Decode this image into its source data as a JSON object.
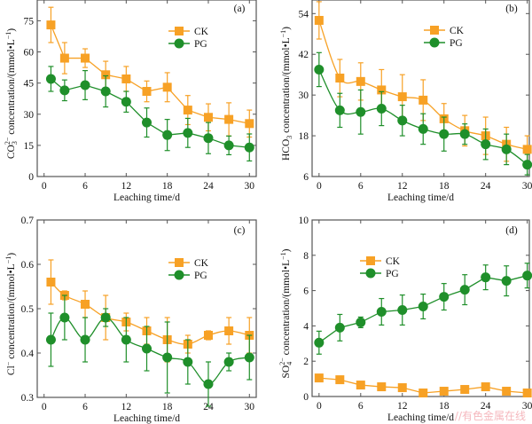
{
  "colors": {
    "CK": "#f7a125",
    "PG": "#1f8f2a",
    "axis": "#555555"
  },
  "watermark": "//有色金属在线",
  "chart_data": [
    {
      "id": "a",
      "type": "line",
      "panel_label": "(a)",
      "xlabel": "Leaching time/d",
      "ylabel_parts": [
        "CO",
        "3",
        "2−",
        " concentration/(mmol•L",
        "−1",
        ")"
      ],
      "ylabel": "CO3^2− concentration/(mmol•L^−1)",
      "xlim": [
        -1,
        31
      ],
      "ylim": [
        0,
        85
      ],
      "xticks": [
        0,
        6,
        12,
        18,
        24,
        30
      ],
      "yticks": [
        0,
        15,
        30,
        45,
        60,
        75
      ],
      "legend": [
        "CK",
        "PG"
      ],
      "legend_placement": "top-right",
      "smooth": false,
      "x": [
        1,
        3,
        6,
        9,
        12,
        15,
        18,
        21,
        24,
        27,
        30
      ],
      "series": [
        {
          "name": "CK",
          "marker": "square",
          "values": [
            73,
            57,
            57,
            49,
            47,
            41,
            43,
            32,
            28.5,
            27.5,
            25.5
          ],
          "errors": [
            8.5,
            7.5,
            4.5,
            6.5,
            6,
            5,
            7,
            7,
            6.5,
            8,
            6.5
          ]
        },
        {
          "name": "PG",
          "marker": "circle",
          "values": [
            47,
            41.5,
            44,
            41,
            36,
            26,
            20,
            21,
            18.5,
            15,
            14
          ],
          "errors": [
            6,
            5,
            7,
            7.5,
            5,
            7,
            7.5,
            7,
            7.5,
            4.5,
            6.5
          ]
        }
      ]
    },
    {
      "id": "b",
      "type": "line",
      "panel_label": "(b)",
      "xlabel": "Leaching time/d",
      "ylabel_parts": [
        "HCO",
        "3",
        "",
        " concentration/(mmol•L",
        "−1",
        ")"
      ],
      "ylabel": "HCO3 concentration/(mmol•L^−1)",
      "xlim": [
        -1,
        30.3
      ],
      "ylim": [
        6,
        58
      ],
      "xticks": [
        0,
        6,
        12,
        18,
        24,
        30
      ],
      "yticks": [
        6,
        18,
        30,
        42,
        54
      ],
      "legend": [
        "CK",
        "PG"
      ],
      "legend_placement": "top-right",
      "smooth": true,
      "x": [
        0,
        3,
        6,
        9,
        12,
        15,
        18,
        21,
        24,
        27,
        30
      ],
      "series": [
        {
          "name": "CK",
          "marker": "square",
          "values": [
            52,
            35,
            34,
            31.5,
            29.5,
            28.5,
            23,
            19.5,
            18,
            15.5,
            14
          ],
          "errors": [
            5.5,
            5.5,
            5.5,
            6,
            6.5,
            6,
            4.5,
            4.5,
            5.5,
            5,
            4
          ]
        },
        {
          "name": "PG",
          "marker": "circle",
          "values": [
            37.5,
            25.5,
            25,
            26,
            22.5,
            20,
            18.5,
            18.5,
            15.5,
            14,
            9.5
          ],
          "errors": [
            5,
            5,
            6.5,
            5,
            4.5,
            4.5,
            5,
            3,
            4.5,
            4.5,
            3
          ]
        }
      ]
    },
    {
      "id": "c",
      "type": "line",
      "panel_label": "(c)",
      "xlabel": "Leaching time/d",
      "ylabel_parts": [
        "Cl",
        "",
        "−",
        " concentration/(mmol•L",
        "−1",
        ")"
      ],
      "ylabel": "Cl− concentration/(mmol•L^−1)",
      "xlim": [
        -1,
        31
      ],
      "ylim": [
        0.3,
        0.7
      ],
      "xticks": [
        0,
        6,
        12,
        18,
        24,
        30
      ],
      "yticks": [
        0.3,
        0.4,
        0.5,
        0.6,
        0.7
      ],
      "legend": [
        "CK",
        "PG"
      ],
      "legend_placement": "top-right",
      "smooth": true,
      "x": [
        1,
        3,
        6,
        9,
        12,
        15,
        18,
        21,
        24,
        27,
        30
      ],
      "series": [
        {
          "name": "CK",
          "marker": "square",
          "values": [
            0.56,
            0.53,
            0.51,
            0.48,
            0.47,
            0.45,
            0.43,
            0.42,
            0.44,
            0.45,
            0.44
          ],
          "errors": [
            0.05,
            0.01,
            0.03,
            0.05,
            0.02,
            0.03,
            0.05,
            0.02,
            0.01,
            0.03,
            0.04
          ]
        },
        {
          "name": "PG",
          "marker": "circle",
          "values": [
            0.43,
            0.48,
            0.43,
            0.48,
            0.43,
            0.41,
            0.39,
            0.38,
            0.33,
            0.38,
            0.39
          ],
          "errors": [
            0.06,
            0.05,
            0.05,
            0.02,
            0.05,
            0.05,
            0.08,
            0.05,
            0.05,
            0.02,
            0.05
          ]
        }
      ]
    },
    {
      "id": "d",
      "type": "line",
      "panel_label": "(d)",
      "xlabel": "Leaching time/d",
      "ylabel_parts": [
        "SO",
        "4",
        "2−",
        " concentration/(mmol•L",
        "−1",
        ")"
      ],
      "ylabel": "SO4^2− concentration/(mmol•L^−1)",
      "xlim": [
        -1,
        30.3
      ],
      "ylim": [
        0,
        10
      ],
      "xticks": [
        0,
        6,
        12,
        18,
        24,
        30
      ],
      "yticks": [
        0,
        2,
        4,
        6,
        8,
        10
      ],
      "legend": [
        "CK",
        "PG"
      ],
      "legend_placement": "top-left",
      "smooth": false,
      "x": [
        0,
        3,
        6,
        9,
        12,
        15,
        18,
        21,
        24,
        27,
        30
      ],
      "series": [
        {
          "name": "CK",
          "marker": "square",
          "values": [
            1.05,
            0.95,
            0.65,
            0.55,
            0.5,
            0.2,
            0.3,
            0.4,
            0.55,
            0.3,
            0.2
          ],
          "errors": [
            0,
            0,
            0,
            0,
            0,
            0,
            0,
            0,
            0,
            0,
            0
          ]
        },
        {
          "name": "PG",
          "marker": "circle",
          "values": [
            3.05,
            3.9,
            4.2,
            4.8,
            4.9,
            5.1,
            5.65,
            6.05,
            6.75,
            6.55,
            6.85
          ],
          "errors": [
            0.65,
            0.75,
            0.3,
            0.75,
            0.85,
            0.7,
            0.75,
            0.85,
            0.7,
            0.85,
            0.7
          ]
        }
      ]
    }
  ]
}
